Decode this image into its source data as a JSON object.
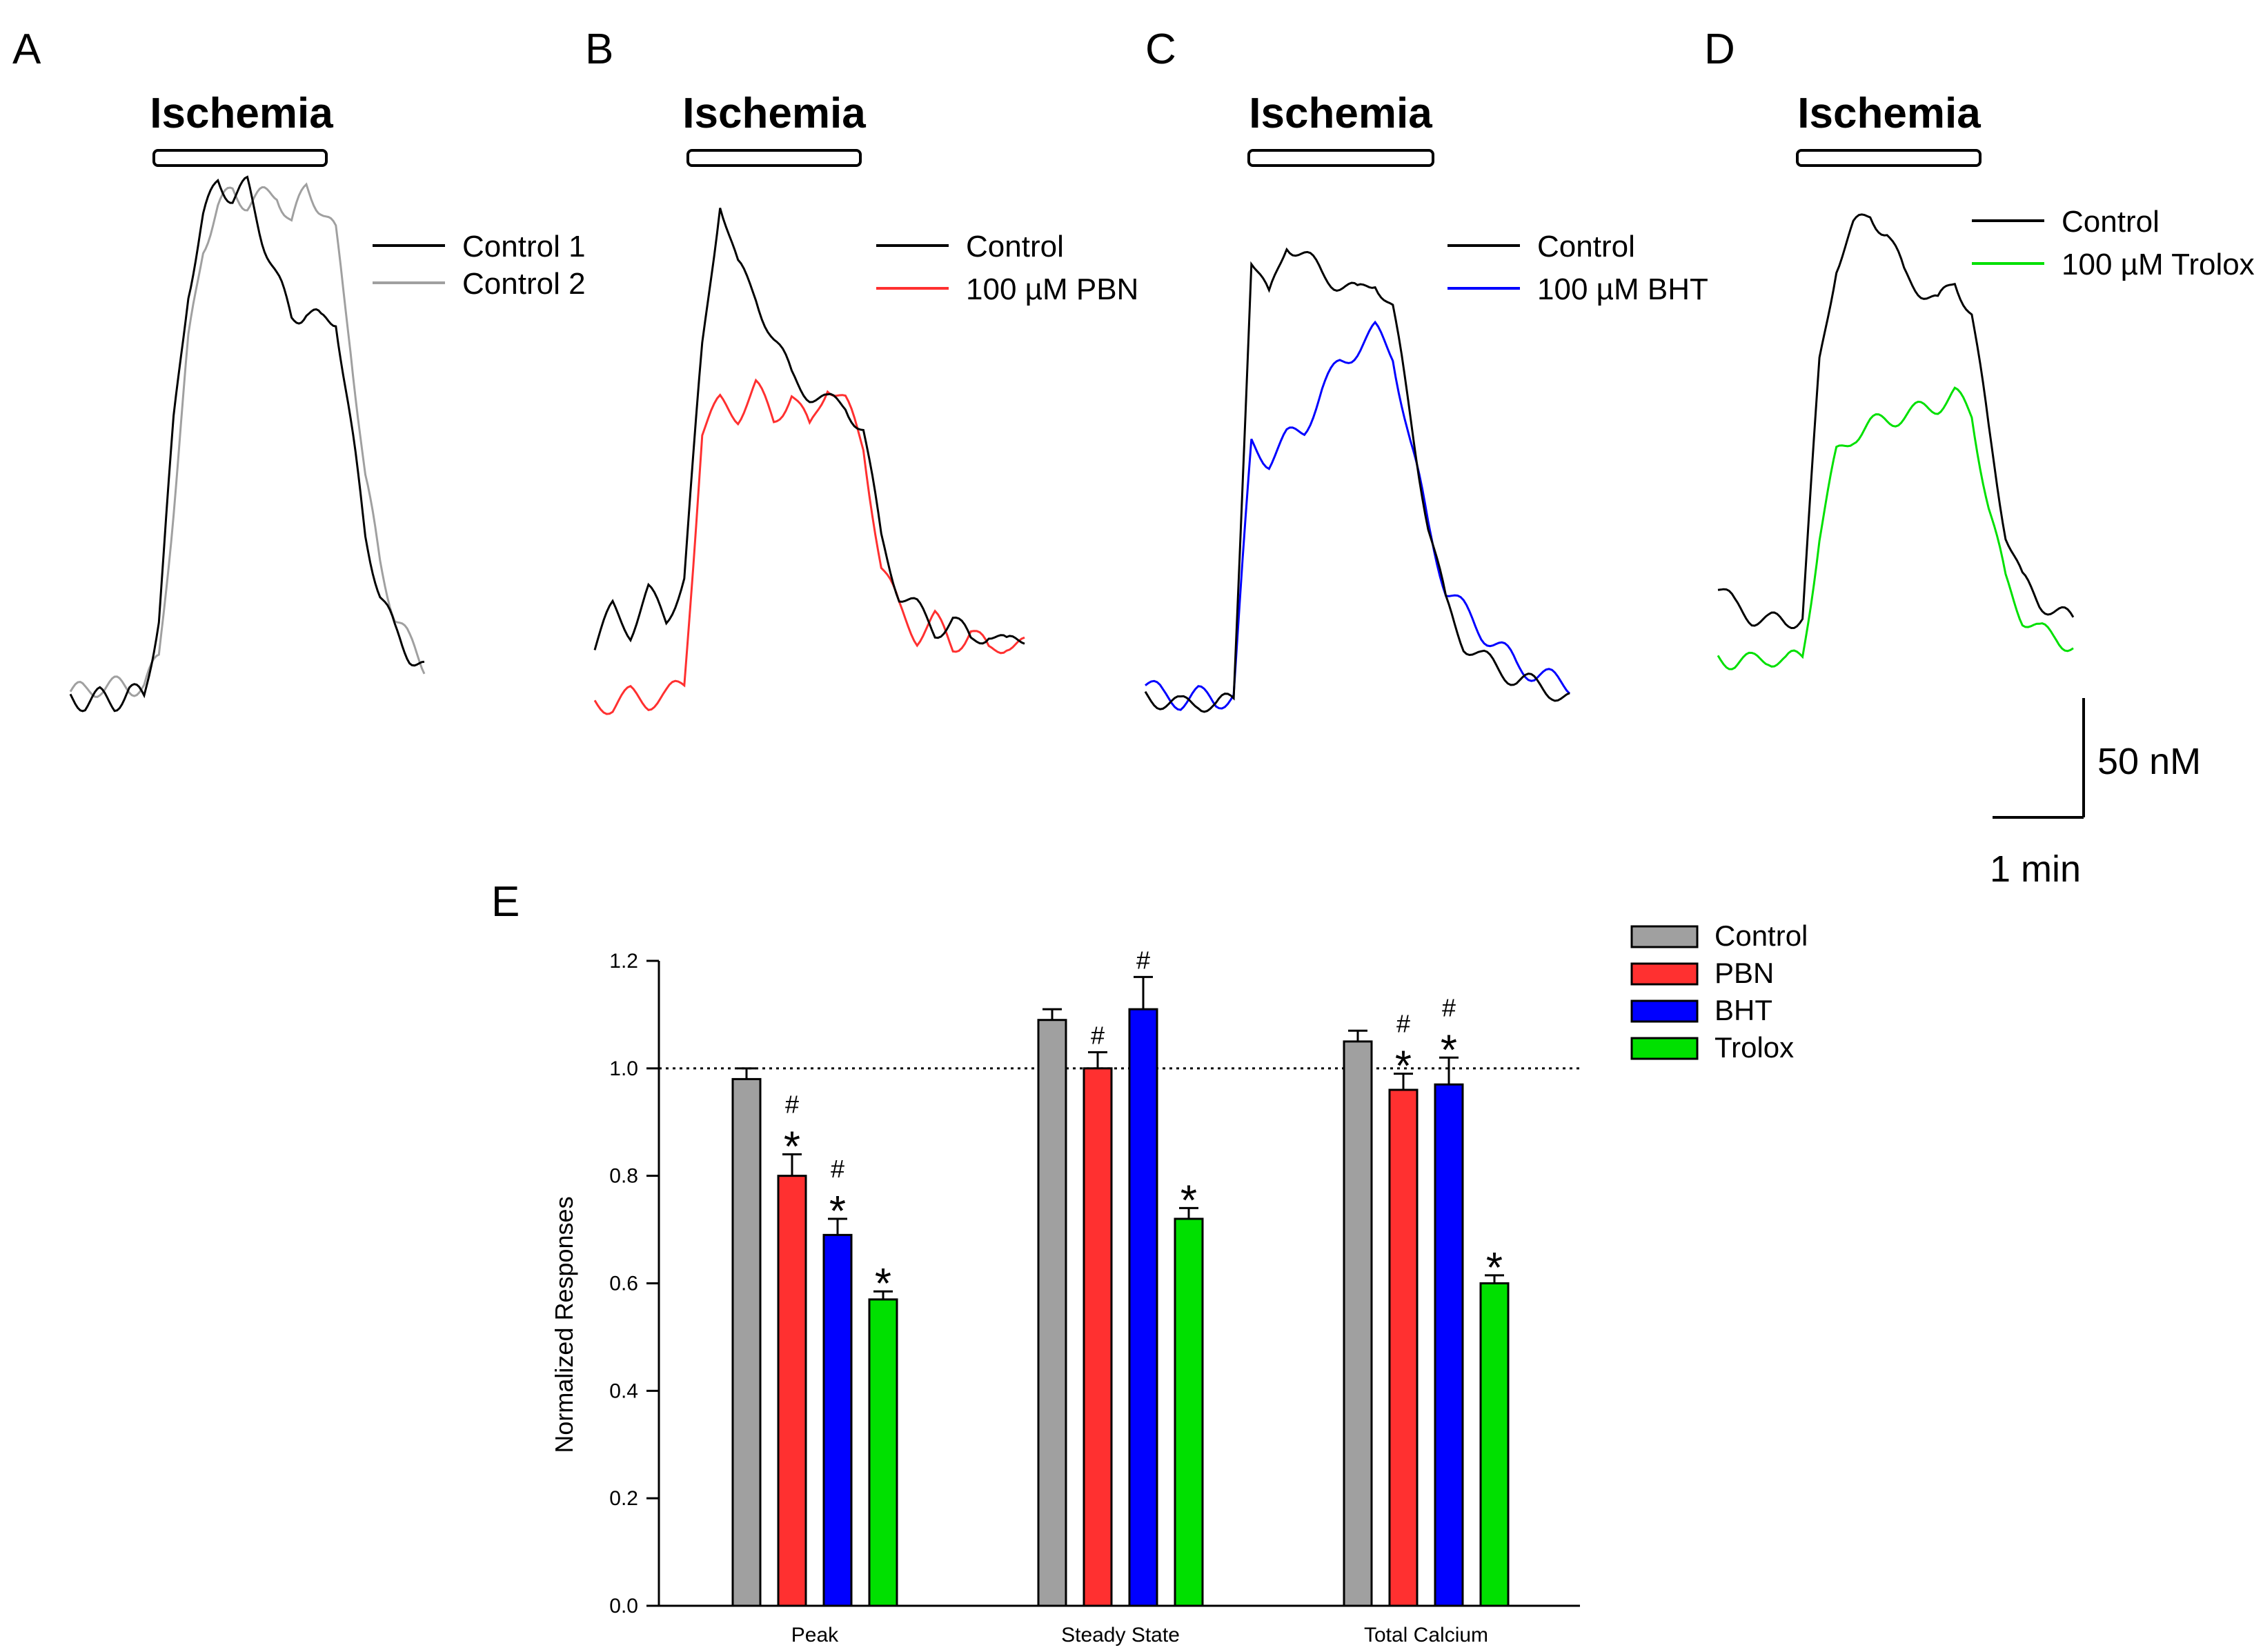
{
  "chart_data": [
    {
      "panel": "A",
      "type": "line",
      "title": "Ischemia",
      "series": [
        {
          "name": "Control 1",
          "color": "#000000",
          "values": [
            0.05,
            0.04,
            0.05,
            0.04,
            0.06,
            0.05,
            0.2,
            0.55,
            0.8,
            0.93,
            1.0,
            0.97,
            0.99,
            0.9,
            0.82,
            0.75,
            0.76,
            0.74,
            0.75,
            0.55,
            0.35,
            0.24,
            0.17,
            0.13,
            0.1
          ]
        },
        {
          "name": "Control 2",
          "color": "#a0a0a0",
          "values": [
            0.06,
            0.06,
            0.07,
            0.07,
            0.07,
            0.07,
            0.12,
            0.4,
            0.7,
            0.88,
            0.95,
            0.98,
            0.96,
            0.97,
            0.98,
            0.92,
            0.99,
            0.95,
            0.9,
            0.7,
            0.45,
            0.3,
            0.2,
            0.15,
            0.11
          ]
        }
      ]
    },
    {
      "panel": "B",
      "type": "line",
      "title": "Ischemia",
      "series": [
        {
          "name": "Control",
          "color": "#000000",
          "values": [
            0.15,
            0.22,
            0.18,
            0.25,
            0.2,
            0.28,
            0.7,
            0.98,
            0.85,
            0.8,
            0.72,
            0.65,
            0.62,
            0.6,
            0.6,
            0.55,
            0.35,
            0.25,
            0.22,
            0.18,
            0.2,
            0.16,
            0.18,
            0.15,
            0.17
          ]
        },
        {
          "name": "100 µM PBN",
          "color": "#ff3030",
          "values": [
            0.05,
            0.04,
            0.06,
            0.05,
            0.06,
            0.08,
            0.55,
            0.6,
            0.58,
            0.63,
            0.57,
            0.62,
            0.55,
            0.64,
            0.6,
            0.52,
            0.3,
            0.22,
            0.17,
            0.2,
            0.15,
            0.18,
            0.14,
            0.16,
            0.15
          ]
        }
      ]
    },
    {
      "panel": "C",
      "type": "line",
      "title": "Ischemia",
      "series": [
        {
          "name": "Control",
          "color": "#000000",
          "values": [
            0.08,
            0.07,
            0.06,
            0.07,
            0.06,
            0.07,
            0.9,
            0.82,
            0.93,
            0.9,
            0.87,
            0.85,
            0.83,
            0.86,
            0.8,
            0.6,
            0.4,
            0.25,
            0.18,
            0.15,
            0.13,
            0.11,
            0.1,
            0.09,
            0.07
          ]
        },
        {
          "name": "100 µM BHT",
          "color": "#0000ff",
          "values": [
            0.1,
            0.08,
            0.07,
            0.08,
            0.07,
            0.08,
            0.55,
            0.52,
            0.56,
            0.58,
            0.65,
            0.7,
            0.73,
            0.76,
            0.72,
            0.55,
            0.4,
            0.28,
            0.24,
            0.2,
            0.17,
            0.14,
            0.12,
            0.11,
            0.1
          ]
        }
      ]
    },
    {
      "panel": "D",
      "type": "line",
      "title": "Ischemia",
      "series": [
        {
          "name": "Control",
          "color": "#000000",
          "values": [
            0.24,
            0.2,
            0.18,
            0.17,
            0.17,
            0.18,
            0.68,
            0.88,
            0.95,
            0.98,
            0.94,
            0.86,
            0.83,
            0.8,
            0.85,
            0.78,
            0.55,
            0.35,
            0.25,
            0.21,
            0.19,
            0.17
          ]
        },
        {
          "name": "100 µM Trolox",
          "color": "#00e000",
          "values": [
            0.1,
            0.09,
            0.09,
            0.1,
            0.09,
            0.1,
            0.34,
            0.5,
            0.54,
            0.56,
            0.57,
            0.58,
            0.59,
            0.6,
            0.62,
            0.58,
            0.4,
            0.25,
            0.18,
            0.15,
            0.14,
            0.12
          ]
        }
      ]
    },
    {
      "panel": "E",
      "type": "bar",
      "categories": [
        "Peak",
        "Steady State",
        "Total Calcium"
      ],
      "ylabel": "Normalized Responses",
      "ylim": [
        0,
        1.2
      ],
      "yticks": [
        "0.0",
        "0.2",
        "0.4",
        "0.6",
        "0.8",
        "1.0",
        "1.2"
      ],
      "reference_line": 1.0,
      "series": [
        {
          "name": "Control",
          "color": "#a0a0a0",
          "values": [
            0.98,
            1.09,
            1.05
          ],
          "errors": [
            0.02,
            0.02,
            0.02
          ],
          "marks": [
            "",
            "",
            ""
          ]
        },
        {
          "name": "PBN",
          "color": "#ff3030",
          "values": [
            0.8,
            1.0,
            0.96
          ],
          "errors": [
            0.04,
            0.03,
            0.03
          ],
          "marks": [
            "#*",
            "#",
            "#*"
          ]
        },
        {
          "name": "BHT",
          "color": "#0000ff",
          "values": [
            0.69,
            1.11,
            0.97
          ],
          "errors": [
            0.03,
            0.06,
            0.05
          ],
          "marks": [
            "#*",
            "#",
            "#*"
          ]
        },
        {
          "name": "Trolox",
          "color": "#00e000",
          "values": [
            0.57,
            0.72,
            0.6
          ],
          "errors": [
            0.015,
            0.02,
            0.015
          ],
          "marks": [
            "*",
            "*",
            "*"
          ]
        }
      ]
    }
  ],
  "labels": {
    "panel_a": "A",
    "panel_b": "B",
    "panel_c": "C",
    "panel_d": "D",
    "panel_e": "E",
    "ischemia": "Ischemia",
    "scale_y": "50 nM",
    "scale_x": "1 min"
  }
}
